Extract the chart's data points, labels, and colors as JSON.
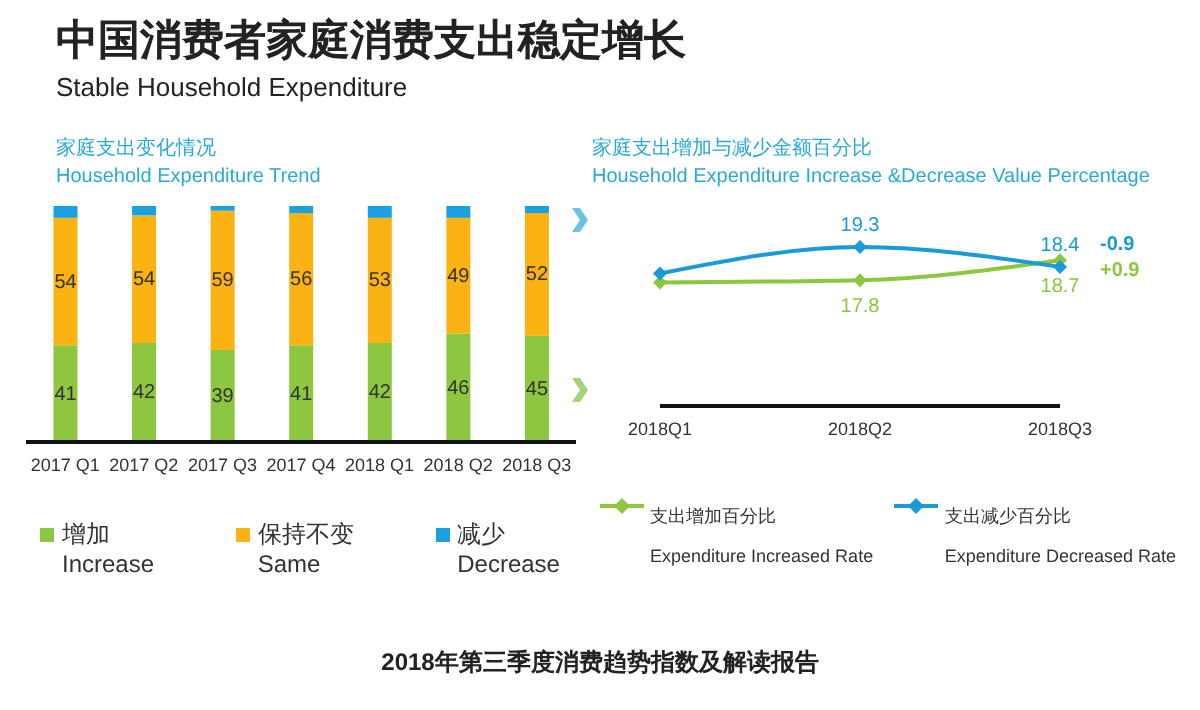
{
  "chart_data": [
    {
      "type": "other",
      "title": "中国消费者家庭消费支出稳定增长",
      "subtitle": "Stable Household Expenditure",
      "annotations": [
        "2018年第三季度消费趋势指数及解读报告"
      ]
    },
    {
      "type": "bar",
      "title": "家庭支出变化情况",
      "subtitle": "Household Expenditure Trend",
      "stacked": true,
      "categories": [
        "2017 Q1",
        "2017 Q2",
        "2017 Q3",
        "2017 Q4",
        "2018 Q1",
        "2018 Q2",
        "2018 Q3"
      ],
      "ylim": [
        0,
        100
      ],
      "tick_labels": "x",
      "legend": "bottom",
      "series": [
        {
          "name": "增加\nIncrease",
          "color": "#8dc63f",
          "values": [
            41,
            42,
            39,
            41,
            42,
            46,
            45
          ],
          "value_labels": [
            "41",
            "42",
            "39",
            "41",
            "42",
            "46",
            "45"
          ]
        },
        {
          "name": "保持不变\nSame",
          "color": "#fbb314",
          "values": [
            54,
            54,
            59,
            56,
            53,
            49,
            52
          ],
          "value_labels": [
            "54",
            "54",
            "59",
            "56",
            "53",
            "49",
            "52"
          ]
        },
        {
          "name": "减少\nDecrease",
          "color": "#1ba1e2",
          "values": [
            5,
            4,
            2,
            3,
            5,
            5,
            3
          ]
        }
      ]
    },
    {
      "type": "line",
      "title": "家庭支出增加与减少金额百分比",
      "subtitle": "Household Expenditure Increase &Decrease Value Percentage",
      "categories": [
        "2018Q1",
        "2018Q2",
        "2018Q3"
      ],
      "tick_labels": "x",
      "legend": "bottom",
      "marker": "diamond",
      "series": [
        {
          "name": "支出增加百分比\nExpenditure Increased Rate",
          "color": "#8dc63f",
          "values": [
            17.7,
            17.8,
            18.7
          ],
          "value_labels": [
            null,
            "17.8",
            "18.7"
          ]
        },
        {
          "name": "支出减少百分比\nExpenditure Decreased Rate",
          "color": "#1a9ad6",
          "values": [
            18.1,
            19.3,
            18.4
          ],
          "value_labels": [
            null,
            "19.3",
            "18.4"
          ]
        }
      ],
      "annotations": [
        {
          "text": "-0.9",
          "x": "2018Q3",
          "y": 18.4
        },
        {
          "text": "+0.9",
          "x": "2018Q3",
          "y": 18.7
        }
      ]
    }
  ]
}
